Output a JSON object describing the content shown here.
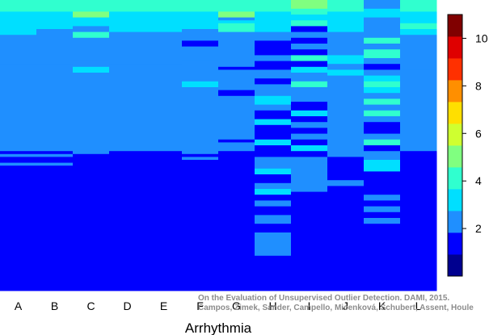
{
  "chart_data": {
    "type": "heatmap",
    "xlabel": "Arrhythmia",
    "categories": [
      "A",
      "B",
      "C",
      "D",
      "E",
      "F",
      "G",
      "H",
      "I",
      "J",
      "K",
      "L"
    ],
    "color_scale": {
      "min": 0,
      "max": 11,
      "ticks": [
        2,
        4,
        6,
        8,
        10
      ],
      "colors": [
        "#00008f",
        "#0000ff",
        "#1f8fff",
        "#00dfff",
        "#30ffcf",
        "#80ff80",
        "#cfff30",
        "#ffdf00",
        "#ff8f00",
        "#ff3000",
        "#df0000",
        "#800000"
      ]
    },
    "rows": 100,
    "columns": [
      {
        "name": "A",
        "segments": [
          [
            0,
            4,
            4
          ],
          [
            4,
            12,
            3
          ],
          [
            12,
            22,
            2
          ],
          [
            22,
            25,
            2
          ],
          [
            25,
            52,
            2
          ],
          [
            52,
            53,
            1
          ],
          [
            53,
            54,
            2
          ],
          [
            54,
            56,
            1
          ],
          [
            56,
            57,
            2
          ],
          [
            57,
            100,
            1
          ]
        ]
      },
      {
        "name": "B",
        "segments": [
          [
            0,
            4,
            4
          ],
          [
            4,
            10,
            3
          ],
          [
            10,
            22,
            2
          ],
          [
            22,
            25,
            2
          ],
          [
            25,
            52,
            2
          ],
          [
            52,
            53,
            1
          ],
          [
            53,
            54,
            2
          ],
          [
            54,
            56,
            1
          ],
          [
            56,
            57,
            2
          ],
          [
            57,
            100,
            1
          ]
        ]
      },
      {
        "name": "C",
        "segments": [
          [
            0,
            4,
            4
          ],
          [
            4,
            6,
            5
          ],
          [
            6,
            9,
            3
          ],
          [
            9,
            11,
            2
          ],
          [
            11,
            13,
            4
          ],
          [
            13,
            21,
            2
          ],
          [
            21,
            23,
            2
          ],
          [
            23,
            25,
            3
          ],
          [
            25,
            53,
            2
          ],
          [
            53,
            100,
            1
          ]
        ]
      },
      {
        "name": "D",
        "segments": [
          [
            0,
            4,
            4
          ],
          [
            4,
            11,
            3
          ],
          [
            11,
            22,
            2
          ],
          [
            22,
            52,
            2
          ],
          [
            52,
            53,
            1
          ],
          [
            53,
            100,
            1
          ]
        ]
      },
      {
        "name": "E",
        "segments": [
          [
            0,
            4,
            4
          ],
          [
            4,
            11,
            3
          ],
          [
            11,
            22,
            2
          ],
          [
            22,
            52,
            2
          ],
          [
            52,
            53,
            1
          ],
          [
            53,
            100,
            1
          ]
        ]
      },
      {
        "name": "F",
        "segments": [
          [
            0,
            4,
            4
          ],
          [
            4,
            10,
            3
          ],
          [
            10,
            14,
            2
          ],
          [
            14,
            16,
            1
          ],
          [
            16,
            21,
            2
          ],
          [
            21,
            25,
            2
          ],
          [
            25,
            28,
            2
          ],
          [
            28,
            30,
            3
          ],
          [
            30,
            53,
            2
          ],
          [
            53,
            54,
            1
          ],
          [
            54,
            55,
            2
          ],
          [
            55,
            57,
            1
          ],
          [
            57,
            100,
            1
          ]
        ]
      },
      {
        "name": "G",
        "segments": [
          [
            0,
            4,
            4
          ],
          [
            4,
            6,
            5
          ],
          [
            6,
            7,
            2
          ],
          [
            7,
            8,
            3
          ],
          [
            8,
            11,
            4
          ],
          [
            11,
            23,
            2
          ],
          [
            23,
            24,
            1
          ],
          [
            24,
            31,
            2
          ],
          [
            31,
            33,
            1
          ],
          [
            33,
            48,
            2
          ],
          [
            48,
            49,
            1
          ],
          [
            49,
            52,
            2
          ],
          [
            52,
            100,
            1
          ]
        ]
      },
      {
        "name": "H",
        "segments": [
          [
            0,
            4,
            4
          ],
          [
            4,
            11,
            3
          ],
          [
            11,
            14,
            2
          ],
          [
            14,
            16,
            1
          ],
          [
            16,
            19,
            1
          ],
          [
            19,
            21,
            2
          ],
          [
            21,
            24,
            1
          ],
          [
            24,
            27,
            2
          ],
          [
            27,
            29,
            1
          ],
          [
            29,
            33,
            2
          ],
          [
            33,
            36,
            3
          ],
          [
            36,
            38,
            2
          ],
          [
            38,
            41,
            1
          ],
          [
            41,
            43,
            3
          ],
          [
            43,
            45,
            1
          ],
          [
            45,
            48,
            1
          ],
          [
            48,
            50,
            3
          ],
          [
            50,
            52,
            1
          ],
          [
            52,
            54,
            1
          ],
          [
            54,
            58,
            2
          ],
          [
            58,
            60,
            3
          ],
          [
            60,
            63,
            1
          ],
          [
            63,
            65,
            2
          ],
          [
            65,
            67,
            3
          ],
          [
            67,
            69,
            1
          ],
          [
            69,
            71,
            2
          ],
          [
            71,
            74,
            1
          ],
          [
            74,
            77,
            2
          ],
          [
            77,
            80,
            1
          ],
          [
            80,
            88,
            2
          ],
          [
            88,
            100,
            1
          ]
        ]
      },
      {
        "name": "I",
        "segments": [
          [
            0,
            3,
            5
          ],
          [
            3,
            5,
            4
          ],
          [
            5,
            7,
            3
          ],
          [
            7,
            9,
            4
          ],
          [
            9,
            11,
            1
          ],
          [
            11,
            13,
            2
          ],
          [
            13,
            15,
            1
          ],
          [
            15,
            17,
            2
          ],
          [
            17,
            19,
            1
          ],
          [
            19,
            21,
            4
          ],
          [
            21,
            23,
            1
          ],
          [
            23,
            25,
            3
          ],
          [
            25,
            28,
            2
          ],
          [
            28,
            30,
            4
          ],
          [
            30,
            35,
            2
          ],
          [
            35,
            38,
            1
          ],
          [
            38,
            40,
            3
          ],
          [
            40,
            42,
            1
          ],
          [
            42,
            44,
            2
          ],
          [
            44,
            46,
            1
          ],
          [
            46,
            48,
            2
          ],
          [
            48,
            50,
            1
          ],
          [
            50,
            52,
            3
          ],
          [
            52,
            54,
            1
          ],
          [
            54,
            60,
            2
          ],
          [
            60,
            66,
            2
          ],
          [
            66,
            100,
            1
          ]
        ]
      },
      {
        "name": "J",
        "segments": [
          [
            0,
            4,
            4
          ],
          [
            4,
            11,
            3
          ],
          [
            11,
            19,
            2
          ],
          [
            19,
            22,
            3
          ],
          [
            22,
            24,
            2
          ],
          [
            24,
            26,
            3
          ],
          [
            26,
            54,
            2
          ],
          [
            54,
            62,
            1
          ],
          [
            62,
            64,
            2
          ],
          [
            64,
            100,
            1
          ]
        ]
      },
      {
        "name": "K",
        "segments": [
          [
            0,
            3,
            2
          ],
          [
            3,
            6,
            3
          ],
          [
            6,
            13,
            2
          ],
          [
            13,
            15,
            4
          ],
          [
            15,
            17,
            2
          ],
          [
            17,
            20,
            4
          ],
          [
            20,
            22,
            2
          ],
          [
            22,
            24,
            1
          ],
          [
            24,
            26,
            2
          ],
          [
            26,
            28,
            3
          ],
          [
            28,
            30,
            4
          ],
          [
            30,
            32,
            3
          ],
          [
            32,
            34,
            2
          ],
          [
            34,
            36,
            4
          ],
          [
            36,
            38,
            2
          ],
          [
            38,
            40,
            4
          ],
          [
            40,
            42,
            2
          ],
          [
            42,
            46,
            1
          ],
          [
            46,
            48,
            2
          ],
          [
            48,
            50,
            4
          ],
          [
            50,
            52,
            1
          ],
          [
            52,
            55,
            2
          ],
          [
            55,
            59,
            3
          ],
          [
            59,
            67,
            1
          ],
          [
            67,
            69,
            2
          ],
          [
            69,
            71,
            1
          ],
          [
            71,
            73,
            2
          ],
          [
            73,
            75,
            1
          ],
          [
            75,
            77,
            2
          ],
          [
            77,
            100,
            1
          ]
        ]
      },
      {
        "name": "L",
        "segments": [
          [
            0,
            4,
            4
          ],
          [
            4,
            8,
            3
          ],
          [
            8,
            10,
            4
          ],
          [
            10,
            12,
            3
          ],
          [
            12,
            24,
            2
          ],
          [
            24,
            52,
            2
          ],
          [
            52,
            100,
            1
          ]
        ]
      }
    ]
  },
  "credit": {
    "line1": "On the Evaluation of Unsupervised Outlier Detection. DAMI, 2015.",
    "line2": "Campos, Zimek, Sander, Campello, Micenková, Schubert, Assent, Houle"
  }
}
